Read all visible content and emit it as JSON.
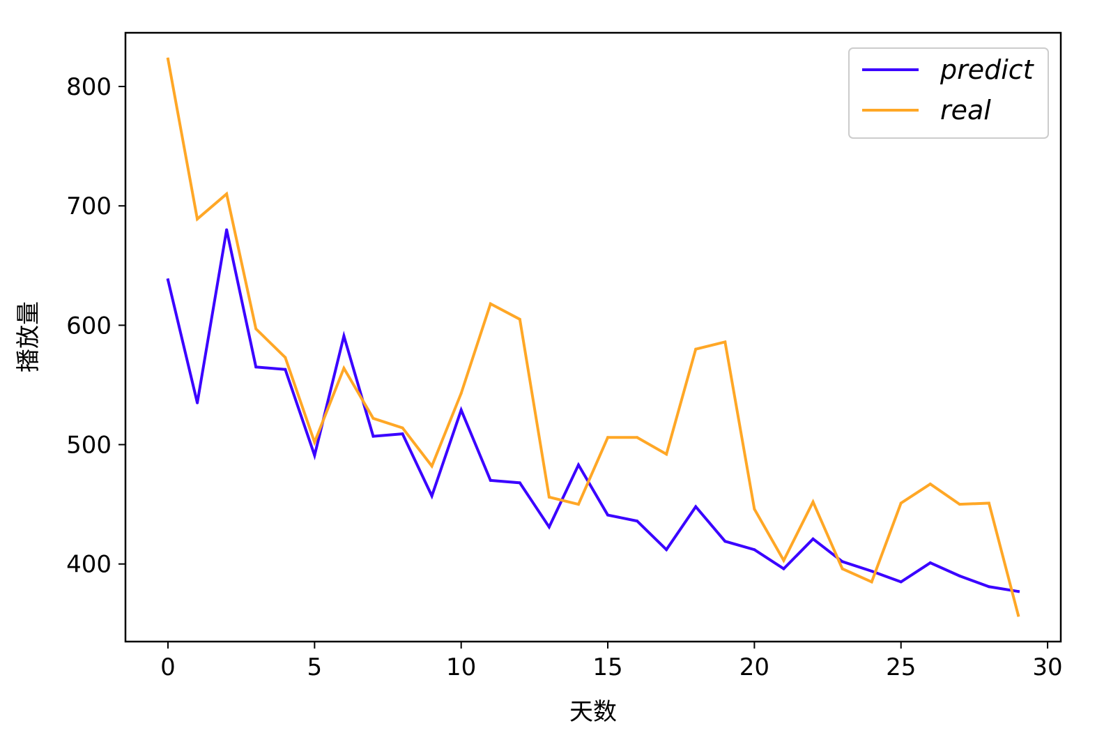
{
  "chart_data": {
    "type": "line",
    "title": "",
    "xlabel": "天数",
    "ylabel": "播放量",
    "xlim": [
      -1.45,
      30.45
    ],
    "ylim": [
      335,
      845
    ],
    "xticks": [
      0,
      5,
      10,
      15,
      20,
      25,
      30
    ],
    "yticks": [
      400,
      500,
      600,
      700,
      800
    ],
    "xtick_labels": [
      "0",
      "5",
      "10",
      "15",
      "20",
      "25",
      "30"
    ],
    "ytick_labels": [
      "400",
      "500",
      "600",
      "700",
      "800"
    ],
    "grid": false,
    "legend_position": "top-right",
    "x": [
      0,
      1,
      2,
      3,
      4,
      5,
      6,
      7,
      8,
      9,
      10,
      11,
      12,
      13,
      14,
      15,
      16,
      17,
      18,
      19,
      20,
      21,
      22,
      23,
      24,
      25,
      26,
      27,
      28,
      29
    ],
    "series": [
      {
        "name": "predict",
        "color": "#3a00ff",
        "values": [
          638,
          535,
          680,
          565,
          563,
          491,
          591,
          507,
          509,
          457,
          529,
          470,
          468,
          431,
          483,
          441,
          436,
          412,
          448,
          419,
          412,
          396,
          421,
          402,
          394,
          385,
          401,
          390,
          381,
          377
        ]
      },
      {
        "name": "real",
        "color": "#ffa726",
        "values": [
          823,
          689,
          710,
          597,
          573,
          502,
          564,
          522,
          514,
          482,
          543,
          618,
          605,
          456,
          450,
          506,
          506,
          492,
          580,
          586,
          446,
          403,
          452,
          396,
          385,
          451,
          467,
          450,
          451,
          357
        ]
      }
    ]
  }
}
